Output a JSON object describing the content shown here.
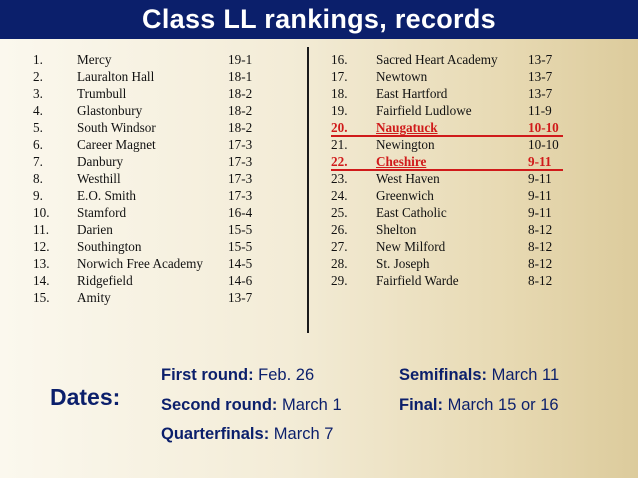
{
  "title": "Class LL rankings, records",
  "rankings_left": [
    {
      "rank": "1.",
      "team": "Mercy",
      "record": "19-1"
    },
    {
      "rank": "2.",
      "team": "Lauralton Hall",
      "record": "18-1"
    },
    {
      "rank": "3.",
      "team": "Trumbull",
      "record": "18-2"
    },
    {
      "rank": "4.",
      "team": "Glastonbury",
      "record": "18-2"
    },
    {
      "rank": "5.",
      "team": "South Windsor",
      "record": "18-2"
    },
    {
      "rank": "6.",
      "team": "Career Magnet",
      "record": "17-3"
    },
    {
      "rank": "7.",
      "team": "Danbury",
      "record": "17-3"
    },
    {
      "rank": "8.",
      "team": "Westhill",
      "record": "17-3"
    },
    {
      "rank": "9.",
      "team": "E.O. Smith",
      "record": "17-3"
    },
    {
      "rank": "10.",
      "team": "Stamford",
      "record": "16-4"
    },
    {
      "rank": "11.",
      "team": "Darien",
      "record": "15-5"
    },
    {
      "rank": "12.",
      "team": "Southington",
      "record": "15-5"
    },
    {
      "rank": "13.",
      "team": "Norwich Free Academy",
      "record": "14-5"
    },
    {
      "rank": "14.",
      "team": "Ridgefield",
      "record": "14-6"
    },
    {
      "rank": "15.",
      "team": "Amity",
      "record": "13-7"
    }
  ],
  "rankings_right": [
    {
      "rank": "16.",
      "team": "Sacred Heart Academy",
      "record": "13-7",
      "highlight": false
    },
    {
      "rank": "17.",
      "team": "Newtown",
      "record": "13-7",
      "highlight": false
    },
    {
      "rank": "18.",
      "team": "East Hartford",
      "record": "13-7",
      "highlight": false
    },
    {
      "rank": "19.",
      "team": "Fairfield Ludlowe",
      "record": "11-9",
      "highlight": false
    },
    {
      "rank": "20.",
      "team": "Naugatuck",
      "record": "10-10",
      "highlight": true
    },
    {
      "rank": "21.",
      "team": "Newington",
      "record": "10-10",
      "highlight": false
    },
    {
      "rank": "22.",
      "team": "Cheshire",
      "record": "9-11",
      "highlight": true
    },
    {
      "rank": "23.",
      "team": "West Haven",
      "record": "9-11",
      "highlight": false
    },
    {
      "rank": "24.",
      "team": "Greenwich",
      "record": "9-11",
      "highlight": false
    },
    {
      "rank": "25.",
      "team": "East Catholic",
      "record": "9-11",
      "highlight": false
    },
    {
      "rank": "26.",
      "team": "Shelton",
      "record": "8-12",
      "highlight": false
    },
    {
      "rank": "27.",
      "team": "New Milford",
      "record": "8-12",
      "highlight": false
    },
    {
      "rank": "28.",
      "team": "St. Joseph",
      "record": "8-12",
      "highlight": false
    },
    {
      "rank": "29.",
      "team": "Fairfield Warde",
      "record": "8-12",
      "highlight": false
    }
  ],
  "dates": {
    "label": "Dates:",
    "first_round": {
      "label": "First round:",
      "value": "Feb. 26"
    },
    "second_round": {
      "label": "Second round:",
      "value": "March 1"
    },
    "quarterfinals": {
      "label": "Quarterfinals:",
      "value": "March 7"
    },
    "semifinals": {
      "label": "Semifinals:",
      "value": "March 11"
    },
    "final": {
      "label": "Final:",
      "value": "March 15 or 16"
    }
  },
  "colors": {
    "title_bar": "#0b1f6b",
    "highlight": "#d01a1a",
    "dates_text": "#0b1f6b"
  }
}
